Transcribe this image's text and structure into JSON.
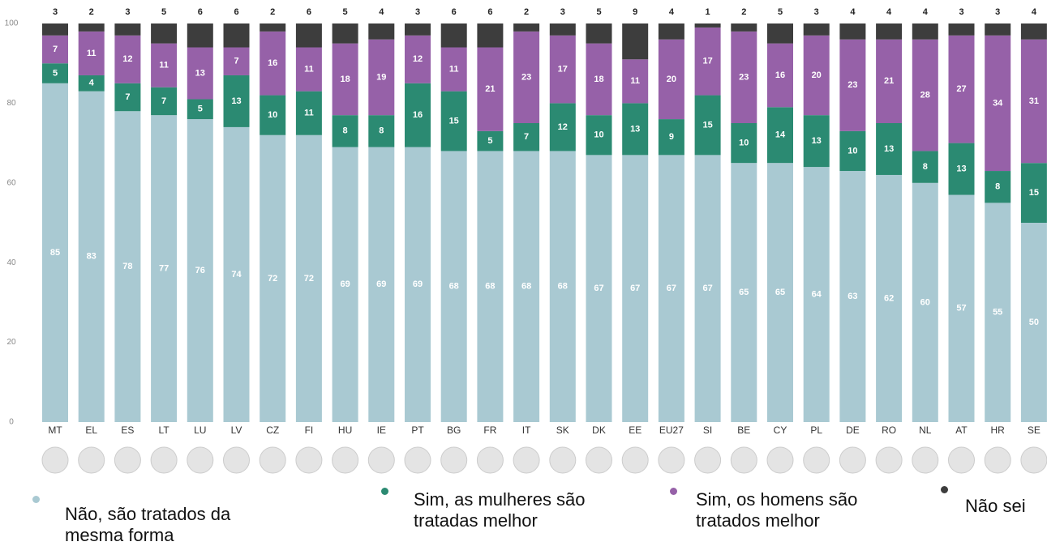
{
  "chart_data": {
    "type": "stacked_bar",
    "categories": [
      "MT",
      "EL",
      "ES",
      "LT",
      "LU",
      "LV",
      "CZ",
      "FI",
      "HU",
      "IE",
      "PT",
      "BG",
      "FR",
      "IT",
      "SK",
      "DK",
      "EE",
      "EU27",
      "SI",
      "BE",
      "CY",
      "PL",
      "DE",
      "RO",
      "NL",
      "AT",
      "HR",
      "SE"
    ],
    "series": [
      {
        "name": "Não, são tratados da mesma forma",
        "color": "#a9c9d2",
        "values": [
          85,
          83,
          78,
          77,
          76,
          74,
          72,
          72,
          69,
          69,
          69,
          68,
          68,
          68,
          68,
          67,
          67,
          67,
          67,
          65,
          65,
          64,
          63,
          62,
          60,
          57,
          55,
          50
        ]
      },
      {
        "name": "Sim, as mulheres são tratadas melhor",
        "color": "#2b8a72",
        "values": [
          5,
          4,
          7,
          7,
          5,
          13,
          10,
          11,
          8,
          8,
          16,
          15,
          5,
          7,
          12,
          10,
          13,
          9,
          15,
          10,
          14,
          13,
          10,
          13,
          8,
          13,
          8,
          15
        ]
      },
      {
        "name": "Sim, os homens são tratados melhor",
        "color": "#9661a8",
        "values": [
          7,
          11,
          12,
          11,
          13,
          7,
          16,
          11,
          18,
          19,
          12,
          11,
          21,
          23,
          17,
          18,
          11,
          20,
          17,
          23,
          16,
          20,
          23,
          21,
          28,
          27,
          34,
          31
        ]
      },
      {
        "name": "Não sei",
        "color": "#3d3d3d",
        "values": [
          3,
          2,
          3,
          5,
          6,
          6,
          2,
          6,
          5,
          4,
          3,
          6,
          6,
          2,
          3,
          5,
          9,
          4,
          1,
          2,
          5,
          3,
          4,
          4,
          4,
          3,
          3,
          4
        ]
      }
    ],
    "ylim": [
      0,
      100
    ],
    "yticks": [
      0,
      20,
      40,
      60,
      80,
      100
    ]
  }
}
